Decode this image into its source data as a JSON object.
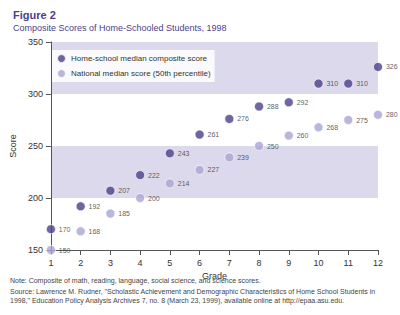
{
  "chart_data": {
    "type": "scatter",
    "title": "Figure 2",
    "subtitle": "Composite Scores of Home-Schooled Students, 1998",
    "x_label": "Grade",
    "y_label": "Score",
    "x": [
      1,
      2,
      3,
      4,
      5,
      6,
      7,
      8,
      9,
      10,
      11,
      12
    ],
    "series": [
      {
        "name": "Home-school median composite score",
        "color": "#4b3f8a",
        "values": [
          170,
          192,
          207,
          222,
          243,
          261,
          276,
          288,
          292,
          310,
          310,
          326
        ]
      },
      {
        "name": "National median score (50th percentile)",
        "color": "#aaa4d2",
        "values": [
          150,
          168,
          185,
          200,
          214,
          227,
          239,
          250,
          260,
          268,
          275,
          280
        ]
      }
    ],
    "xlim": [
      1,
      12
    ],
    "xticks": [
      1,
      2,
      3,
      4,
      5,
      6,
      7,
      8,
      9,
      10,
      11,
      12
    ],
    "ylim": [
      150,
      350
    ],
    "yticks": [
      150,
      200,
      250,
      300,
      350
    ],
    "grid": true,
    "legend": "top-left",
    "data_labels": true,
    "marker": "circle",
    "annotations": [
      "Note: Composite of math, reading, language, social science, and science scores.",
      "Source: Lawrence M. Rudner, \"Scholastic Achievement and Demographic Characteristics of Home School Students in 1998,\" Education Policy Analysis Archives 7, no. 8 (March 23, 1999), available online at http://epaa.asu.edu."
    ]
  }
}
